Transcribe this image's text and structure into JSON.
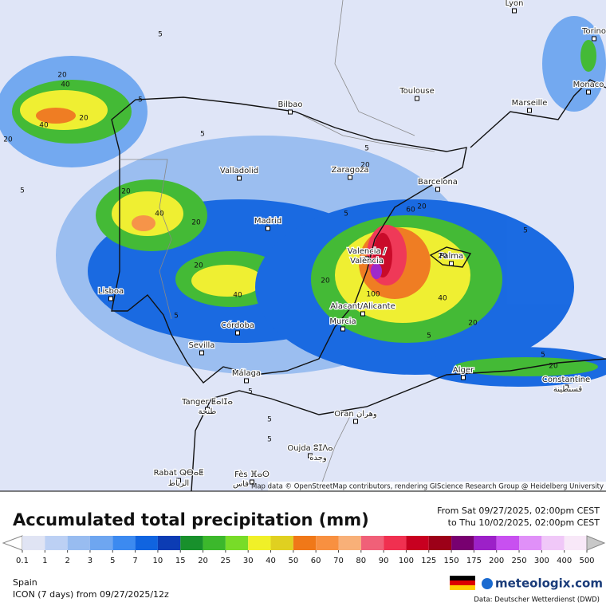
{
  "map": {
    "cities": [
      "Lyon",
      "Torino",
      "Monaco",
      "Toulouse",
      "Marseille",
      "Bilbao",
      "Valladolid",
      "Zaragoza",
      "Barcelona",
      "Madrid",
      "Valencia /",
      "València",
      "Palma",
      "Lisboa",
      "Alacant/Alicante",
      "Murcia",
      "Córdoba",
      "Sevilla",
      "Alger",
      "Constantine",
      "قسنطينة",
      "Málaga",
      "Tanger ⵟⴰⵏⵊⴰ",
      "طنجة",
      "Oran وهران",
      "Oujda ⵓⵊⴷⴰ",
      "وجدة",
      "Rabat ⵕⴱⴰⵟ",
      "الرباط",
      "Fès ⴼⴰⵙ",
      "فاس"
    ],
    "contour_labels": [
      5,
      20,
      40,
      20,
      40,
      20,
      5,
      5,
      5,
      20,
      40,
      20,
      20,
      20,
      40,
      5,
      20,
      5,
      60,
      20,
      5,
      20,
      100,
      40,
      20,
      5,
      5,
      20,
      5,
      5,
      5,
      5
    ],
    "attribution": "Map data © OpenStreetMap contributors, rendering GIScience Research Group @ Heidelberg University"
  },
  "legend": {
    "title": "Accumulated total precipitation (mm)",
    "period_from": "From Sat 09/27/2025, 02:00pm CEST",
    "period_to": "to Thu 10/02/2025, 02:00pm CEST",
    "levels": [
      0.1,
      1,
      2,
      3,
      5,
      7,
      10,
      15,
      20,
      25,
      30,
      40,
      50,
      60,
      70,
      80,
      90,
      100,
      125,
      150,
      175,
      200,
      250,
      300,
      400,
      500
    ],
    "colors": [
      "#ffffff",
      "#e0e4f4",
      "#bcd0f4",
      "#98bcf0",
      "#6ea6f0",
      "#3c8af0",
      "#1064e0",
      "#0c3cb4",
      "#18902c",
      "#3cb82c",
      "#78dc28",
      "#f0f028",
      "#e0d020",
      "#f07818",
      "#f89040",
      "#f8b078",
      "#f06078",
      "#f03050",
      "#c80020",
      "#9c0018",
      "#780070",
      "#9c20c8",
      "#c850f0",
      "#e090f8",
      "#f0c8f8",
      "#f8e8f8",
      "#c8c8c8"
    ]
  },
  "footer": {
    "region": "Spain",
    "model": "ICON (7 days)  from  09/27/2025/12z",
    "brand": "meteologix.com",
    "source": "Data: Deutscher Wetterdienst  (DWD)"
  }
}
